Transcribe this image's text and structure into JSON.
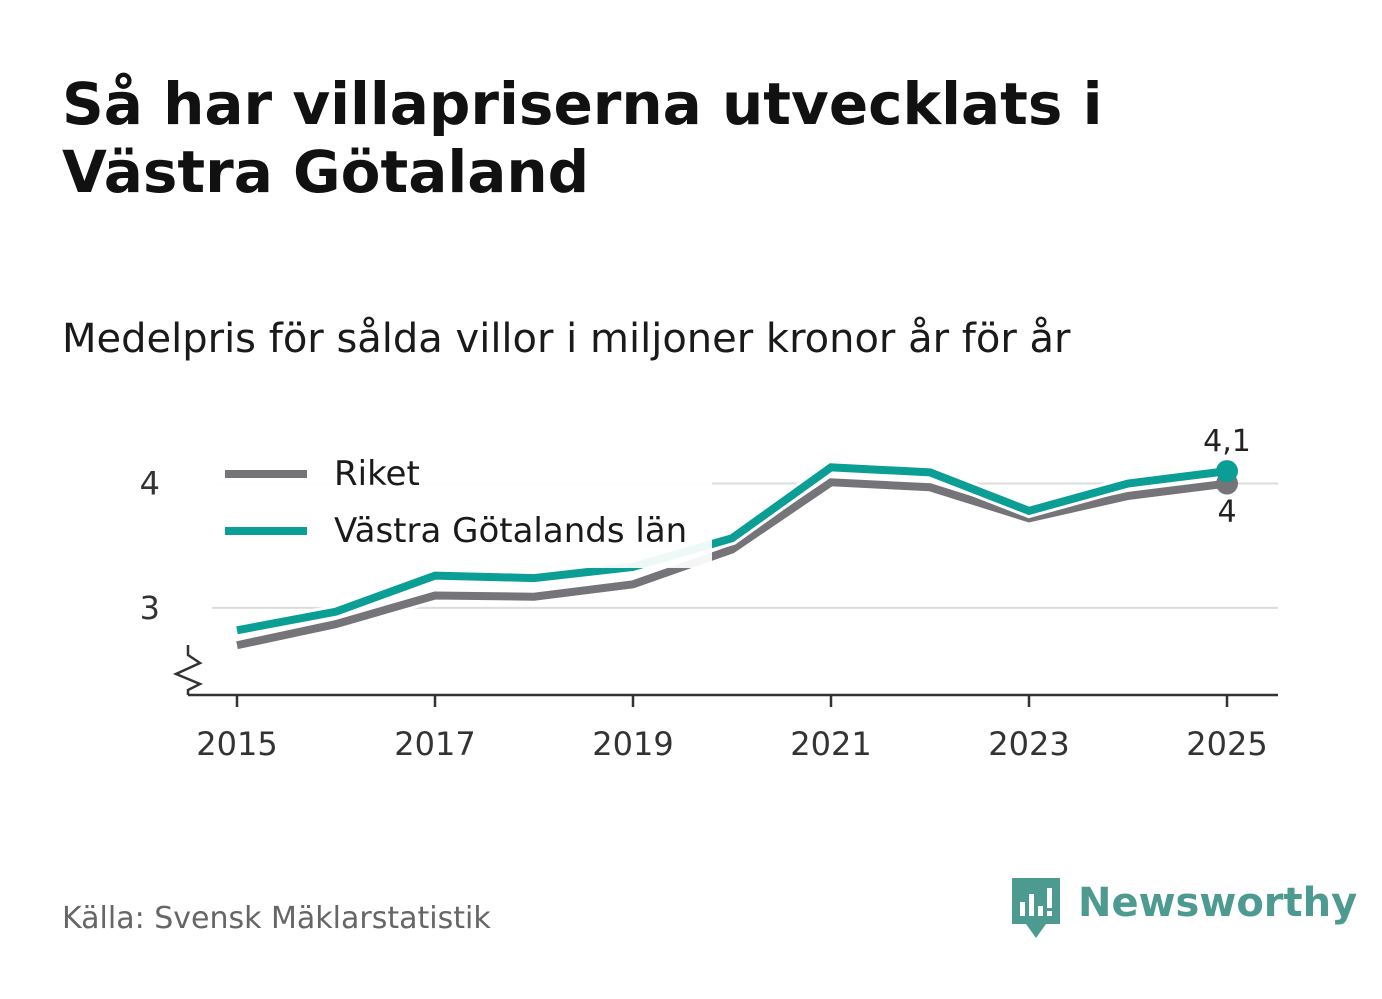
{
  "title": "Så har villapriserna utvecklats i Västra Götaland",
  "subtitle": "Medelpris för sålda villor i miljoner kronor år för år",
  "source": "Källa: Svensk Mäklarstatistik",
  "brand": {
    "name": "Newsworthy",
    "icon": "newsworthy-logo-icon",
    "color": "#4d9a91"
  },
  "chart_data": {
    "type": "line",
    "x": [
      2015,
      2016,
      2017,
      2018,
      2019,
      2020,
      2021,
      2022,
      2023,
      2024,
      2025
    ],
    "xticks": [
      2015,
      2017,
      2019,
      2021,
      2023,
      2025
    ],
    "ylim": [
      2.3,
      4.35
    ],
    "yticks": [
      3,
      4
    ],
    "ytick_labels": [
      "3",
      "4"
    ],
    "y_axis_break": true,
    "grid": true,
    "legend_position": "top-left",
    "series": [
      {
        "name": "Riket",
        "color": "#757478",
        "values": [
          2.7,
          2.87,
          3.1,
          3.09,
          3.19,
          3.47,
          4.01,
          3.97,
          3.72,
          3.9,
          4.0
        ],
        "end_label": "4"
      },
      {
        "name": "Västra Götalands län",
        "color": "#0b9e94",
        "values": [
          2.82,
          2.97,
          3.26,
          3.24,
          3.33,
          3.56,
          4.13,
          4.09,
          3.78,
          4.0,
          4.1
        ],
        "end_label": "4,1"
      }
    ]
  }
}
